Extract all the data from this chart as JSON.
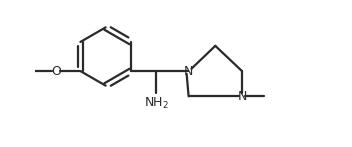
{
  "background_color": "#ffffff",
  "line_color": "#2a2a2a",
  "line_width": 1.6,
  "font_size": 9.0,
  "figsize": [
    3.52,
    1.47
  ],
  "dpi": 100,
  "xlim": [
    0.0,
    5.8
  ],
  "ylim": [
    -0.5,
    2.5
  ]
}
